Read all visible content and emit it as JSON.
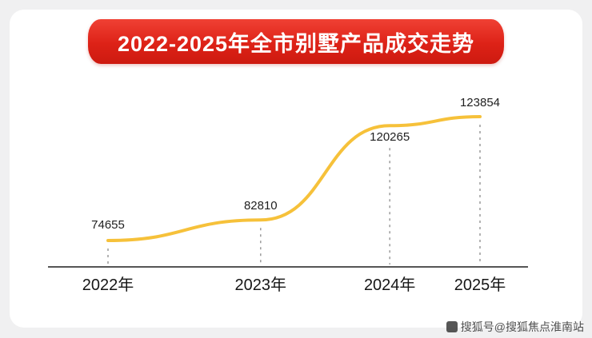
{
  "title": {
    "text": "2022-2025年全市别墅产品成交走势"
  },
  "chart_data": {
    "type": "line",
    "title": "2022-2025年全市别墅产品成交走势",
    "categories": [
      "2022年",
      "2023年",
      "2024年",
      "2025年"
    ],
    "values": [
      74655,
      82810,
      120265,
      123854
    ],
    "xlabel": "",
    "ylabel": "",
    "ylim": [
      70000,
      130000
    ],
    "grid": false,
    "legend": "none",
    "line_color": "#f6c13a",
    "axis_color": "#555555",
    "guide_color": "#9a9a9a",
    "banner_color": "#dd2217"
  },
  "watermark": {
    "text": "搜狐号@搜狐焦点淮南站"
  }
}
